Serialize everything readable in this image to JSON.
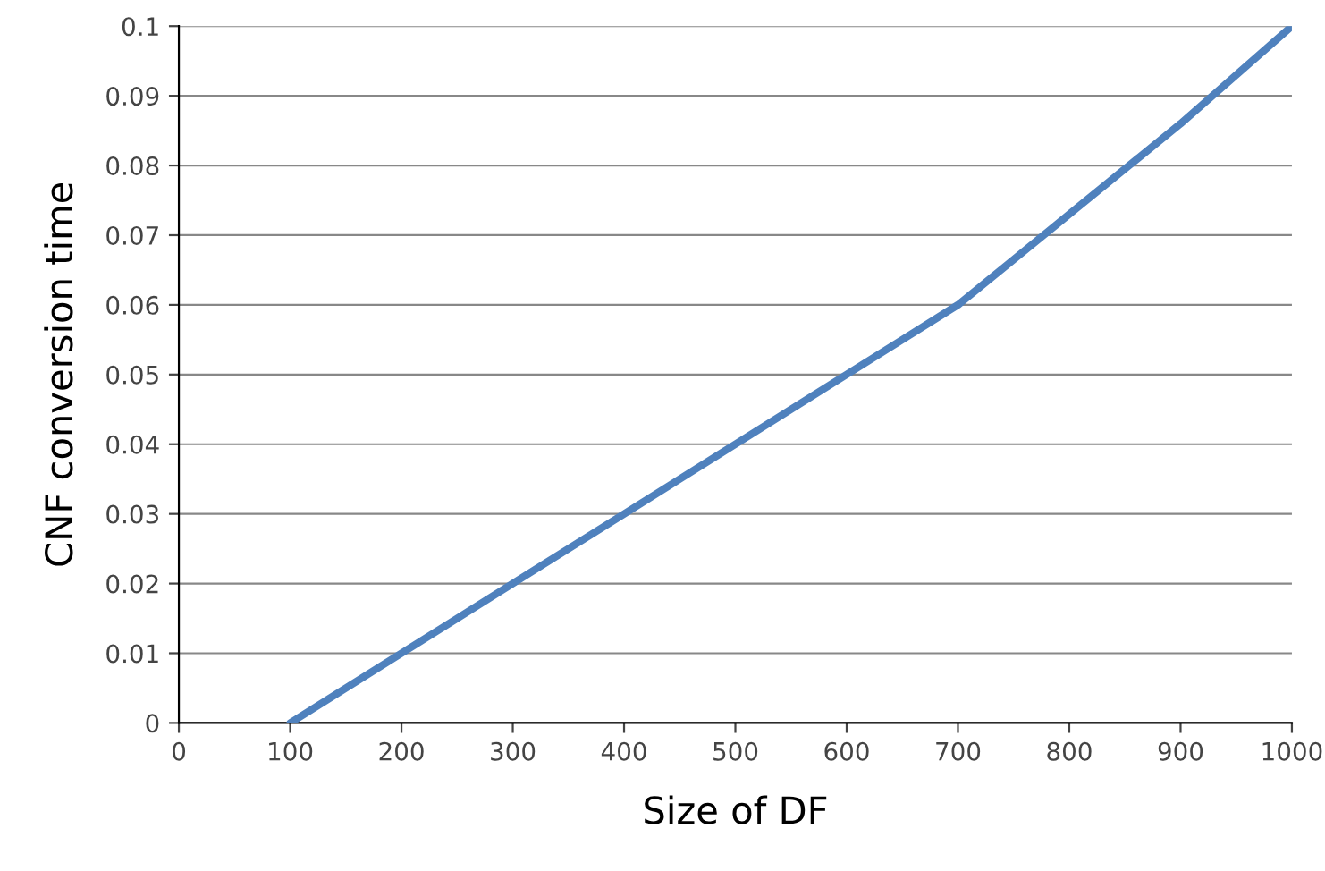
{
  "chart_data": {
    "type": "line",
    "xlabel": "Size of DF",
    "ylabel": "CNF conversion time",
    "x": [
      100,
      200,
      300,
      400,
      500,
      600,
      700,
      800,
      900,
      1000
    ],
    "series": [
      {
        "color": "#4f81bd",
        "values": [
          0,
          0.01,
          0.02,
          0.03,
          0.04,
          0.05,
          0.06,
          0.073,
          0.086,
          0.1
        ]
      }
    ],
    "xlim": [
      0,
      1000
    ],
    "xticks": [
      0,
      100,
      200,
      300,
      400,
      500,
      600,
      700,
      800,
      900,
      1000
    ],
    "ylim": [
      0,
      0.1
    ],
    "yticks": [
      0,
      0.01,
      0.02,
      0.03,
      0.04,
      0.05,
      0.06,
      0.07,
      0.08,
      0.09,
      0.1
    ],
    "grid": "y",
    "legend": false,
    "marker": "none",
    "line_style": "solid"
  }
}
